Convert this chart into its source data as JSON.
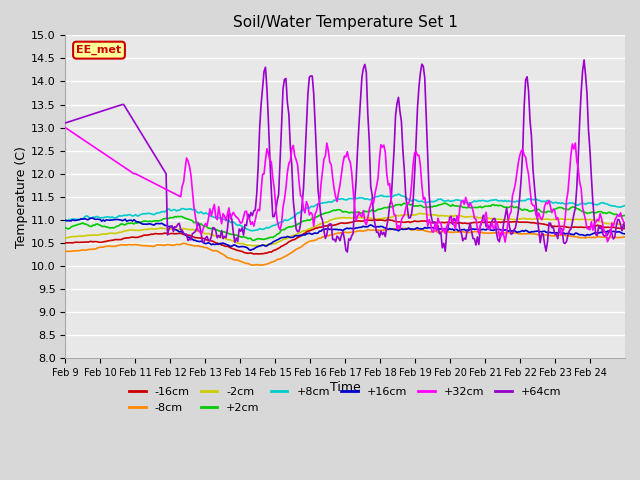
{
  "title": "Soil/Water Temperature Set 1",
  "xlabel": "Time",
  "ylabel": "Temperature (C)",
  "ylim": [
    8.0,
    15.0
  ],
  "yticks": [
    8.0,
    8.5,
    9.0,
    9.5,
    10.0,
    10.5,
    11.0,
    11.5,
    12.0,
    12.5,
    13.0,
    13.5,
    14.0,
    14.5,
    15.0
  ],
  "xtick_labels": [
    "Feb 9",
    "Feb 10",
    "Feb 11",
    "Feb 12",
    "Feb 13",
    "Feb 14",
    "Feb 15",
    "Feb 16",
    "Feb 17",
    "Feb 18",
    "Feb 19",
    "Feb 20",
    "Feb 21",
    "Feb 22",
    "Feb 23",
    "Feb 24"
  ],
  "series_colors": {
    "-16cm": "#cc0000",
    "-8cm": "#ff8800",
    "-2cm": "#cccc00",
    "+2cm": "#00cc00",
    "+8cm": "#00cccc",
    "+16cm": "#0000cc",
    "+32cm": "#ff00ff",
    "+64cm": "#9900cc"
  },
  "annotation_text": "EE_met",
  "annotation_bg": "#ffff99",
  "annotation_border": "#cc0000"
}
